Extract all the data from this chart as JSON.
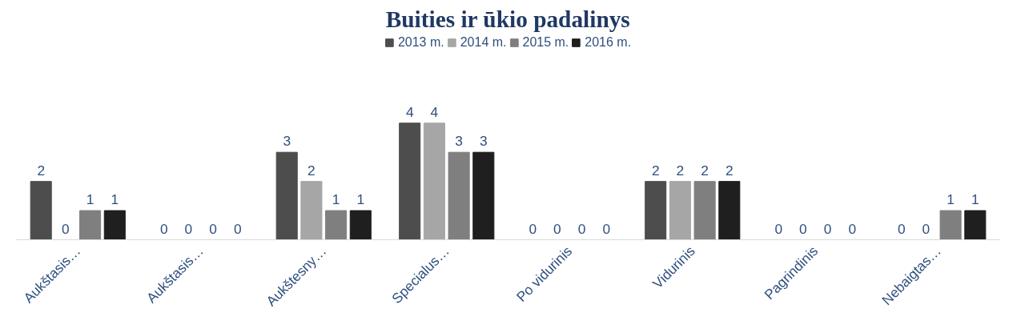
{
  "chart_data": {
    "type": "bar",
    "title": "Buities ir ūkio padalinys",
    "categories": [
      "Aukštasis…",
      "Aukštasis…",
      "Aukštesny…",
      "Specialus…",
      "Po vidurinis",
      "Vidurinis",
      "Pagrindinis",
      "Nebaigtas…"
    ],
    "series": [
      {
        "name": "2013 m.",
        "color": "#4d4d4d",
        "values": [
          2,
          0,
          3,
          4,
          0,
          2,
          0,
          0
        ]
      },
      {
        "name": "2014 m.",
        "color": "#a6a6a6",
        "values": [
          0,
          0,
          2,
          4,
          0,
          2,
          0,
          0
        ]
      },
      {
        "name": "2015 m.",
        "color": "#7f7f7f",
        "values": [
          1,
          0,
          1,
          3,
          0,
          2,
          0,
          1
        ]
      },
      {
        "name": "2016 m.",
        "color": "#1f1f1f",
        "values": [
          1,
          0,
          1,
          3,
          0,
          2,
          0,
          1
        ]
      }
    ],
    "data_labels": true,
    "grid": false,
    "legend": "top",
    "tick_labels": "x"
  }
}
